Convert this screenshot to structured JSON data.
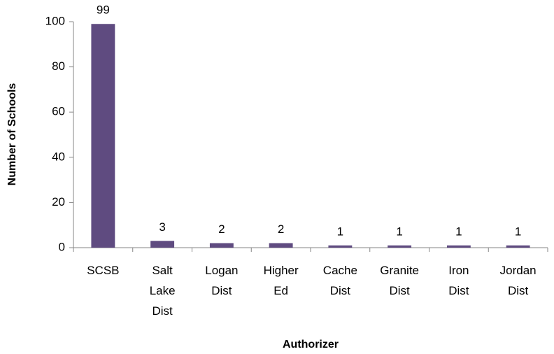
{
  "chart_data": {
    "type": "bar",
    "x_label": "Authorizer",
    "y_label": "Number of Schools",
    "categories": [
      "SCSB",
      "Salt Lake Dist",
      "Logan Dist",
      "Higher Ed",
      "Cache Dist",
      "Granite Dist",
      "Iron Dist",
      "Jordan Dist"
    ],
    "values": [
      99,
      3,
      2,
      2,
      1,
      1,
      1,
      1
    ],
    "color": "#5f4b80",
    "ylim": [
      0,
      100
    ],
    "yticks": [
      0,
      20,
      40,
      60,
      80,
      100
    ]
  }
}
